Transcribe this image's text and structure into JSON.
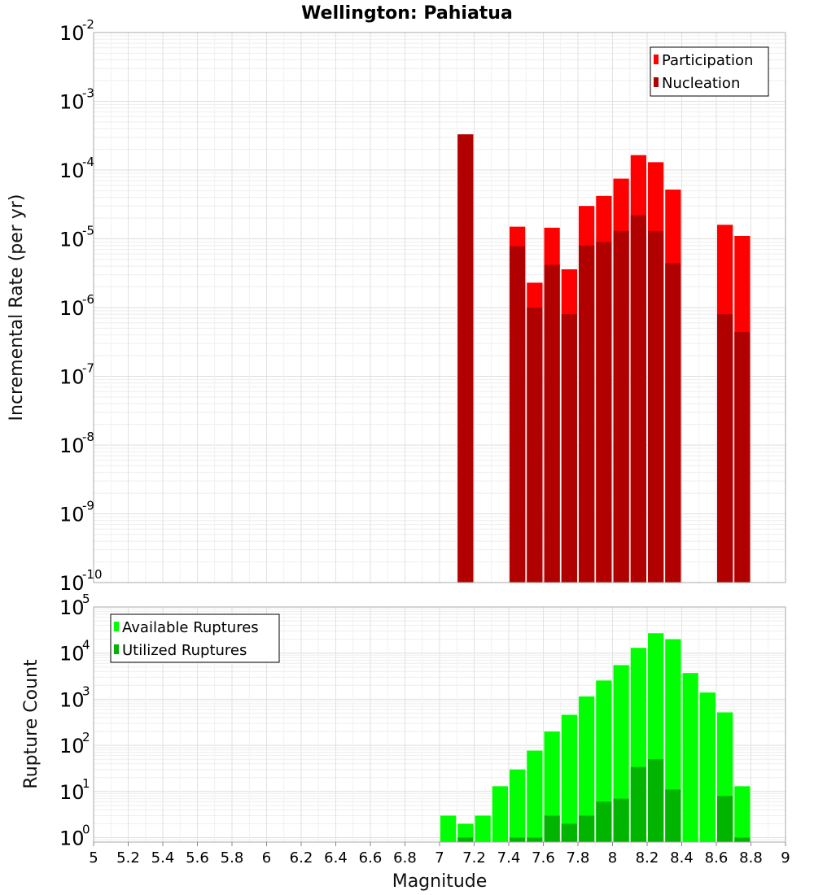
{
  "chart_data": [
    {
      "type": "bar",
      "panel": "top",
      "title": "Wellington: Pahiatua",
      "ylabel": "Incremental Rate (per yr)",
      "yscale": "log",
      "ylim": [
        1e-10,
        0.01
      ],
      "xlim": [
        5,
        9
      ],
      "bar_width": 0.1,
      "grid": true,
      "legend_position": "top-right",
      "series": [
        {
          "name": "Participation",
          "color": "#ff0000",
          "x": [
            7.1,
            7.4,
            7.5,
            7.6,
            7.7,
            7.8,
            7.9,
            8.0,
            8.1,
            8.2,
            8.3,
            8.6,
            8.7
          ],
          "values": [
            0.00033,
            1.5e-05,
            2.3e-06,
            1.45e-05,
            3.6e-06,
            3e-05,
            4.2e-05,
            7.5e-05,
            0.000165,
            0.00013,
            5.2e-05,
            1.6e-05,
            1.1e-05
          ]
        },
        {
          "name": "Nucleation",
          "color": "#b00000",
          "x": [
            7.1,
            7.4,
            7.5,
            7.6,
            7.7,
            7.8,
            7.9,
            8.0,
            8.1,
            8.2,
            8.3,
            8.6,
            8.7
          ],
          "values": [
            0.00033,
            7.8e-06,
            1e-06,
            4.2e-06,
            8e-07,
            8e-06,
            9e-06,
            1.3e-05,
            2.2e-05,
            1.3e-05,
            4.4e-06,
            8e-07,
            4.4e-07
          ]
        }
      ]
    },
    {
      "type": "bar",
      "panel": "bottom",
      "xlabel": "Magnitude",
      "ylabel": "Rupture Count",
      "yscale": "log",
      "ylim": [
        0.8,
        100000
      ],
      "xlim": [
        5,
        9
      ],
      "bar_width": 0.1,
      "grid": true,
      "legend_position": "top-left",
      "series": [
        {
          "name": "Available Ruptures",
          "color": "#00ff00",
          "x": [
            7.0,
            7.1,
            7.2,
            7.3,
            7.4,
            7.5,
            7.6,
            7.7,
            7.8,
            7.9,
            8.0,
            8.1,
            8.2,
            8.3,
            8.4,
            8.5,
            8.6,
            8.7
          ],
          "values": [
            3,
            2,
            3,
            13,
            30,
            77,
            200,
            460,
            1150,
            2550,
            5500,
            13000,
            27000,
            20000,
            3700,
            1400,
            520,
            13
          ]
        },
        {
          "name": "Utilized Ruptures",
          "color": "#00b400",
          "x": [
            7.1,
            7.4,
            7.5,
            7.6,
            7.7,
            7.8,
            7.9,
            8.0,
            8.1,
            8.2,
            8.3,
            8.6,
            8.7
          ],
          "values": [
            1,
            1,
            1,
            3,
            2,
            3,
            6,
            7,
            34,
            50,
            11,
            8,
            1
          ]
        }
      ]
    }
  ],
  "x_ticks": [
    "5",
    "5.2",
    "5.4",
    "5.6",
    "5.8",
    "6",
    "6.2",
    "6.4",
    "6.6",
    "6.8",
    "7",
    "7.2",
    "7.4",
    "7.6",
    "7.8",
    "8",
    "8.2",
    "8.4",
    "8.6",
    "8.8",
    "9"
  ],
  "top_y_ticks": [
    {
      "base": "10",
      "exp": "-2",
      "value": 0.01
    },
    {
      "base": "10",
      "exp": "-3",
      "value": 0.001
    },
    {
      "base": "10",
      "exp": "-4",
      "value": 0.0001
    },
    {
      "base": "10",
      "exp": "-5",
      "value": 1e-05
    },
    {
      "base": "10",
      "exp": "-6",
      "value": 1e-06
    },
    {
      "base": "10",
      "exp": "-7",
      "value": 1e-07
    },
    {
      "base": "10",
      "exp": "-8",
      "value": 1e-08
    },
    {
      "base": "10",
      "exp": "-9",
      "value": 1e-09
    },
    {
      "base": "10",
      "exp": "-10",
      "value": 1e-10
    }
  ],
  "bottom_y_ticks": [
    {
      "base": "10",
      "exp": "5",
      "value": 100000
    },
    {
      "base": "10",
      "exp": "4",
      "value": 10000
    },
    {
      "base": "10",
      "exp": "3",
      "value": 1000
    },
    {
      "base": "10",
      "exp": "2",
      "value": 100
    },
    {
      "base": "10",
      "exp": "1",
      "value": 10
    },
    {
      "base": "10",
      "exp": "0",
      "value": 1
    }
  ]
}
